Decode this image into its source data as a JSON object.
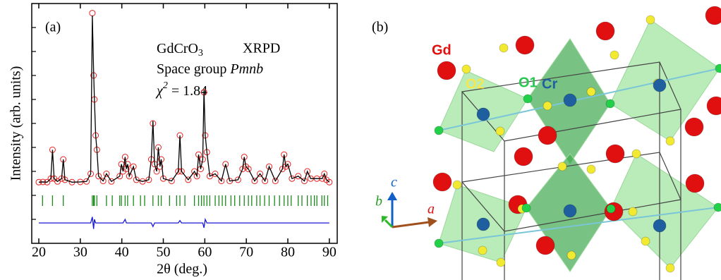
{
  "chart_data": {
    "type": "line",
    "panel_label": "(a)",
    "x_label": "2θ (deg.)",
    "y_label": "Intensity (arb. units)",
    "annotation": {
      "formula": "GdCrO",
      "formula_sub": "3",
      "method": "XRPD",
      "space_group": "Space group ",
      "space_group_symbol": "Pmnb",
      "chi": "χ",
      "chi_sup": "2",
      "chi_value": " = 1.84"
    },
    "xlim": [
      18.3,
      91.9
    ],
    "ylim": [
      0,
      100
    ],
    "xticks": [
      20,
      30,
      40,
      50,
      60,
      70,
      80,
      90
    ],
    "x": [
      20,
      21,
      22,
      22.9,
      23.3,
      23.7,
      24.5,
      25.5,
      25.9,
      26.3,
      28,
      30,
      31.5,
      32.5,
      32.9,
      33.2,
      33.4,
      33.7,
      34.0,
      34.4,
      35.5,
      36.3,
      37.5,
      39.5,
      39.9,
      40.3,
      40.8,
      41.1,
      41.4,
      41.8,
      42.8,
      43.5,
      45,
      46.5,
      47.1,
      47.5,
      47.9,
      48.4,
      48.8,
      49.2,
      49.5,
      50,
      52,
      53.6,
      54.0,
      54.4,
      56,
      57.5,
      58.1,
      58.5,
      59,
      59.5,
      59.8,
      60.1,
      60.5,
      61.2,
      62.5,
      64,
      65.0,
      66,
      68,
      69.1,
      69.5,
      69.9,
      70.5,
      72,
      73.3,
      74.5,
      75.5,
      77,
      78.7,
      79.1,
      79.5,
      80.0,
      81,
      82.5,
      84,
      84.7,
      85.5,
      87.0,
      88.3,
      88.8,
      89.3,
      90
    ],
    "series": [
      {
        "color": "#e8211f",
        "style": "circles",
        "values": [
          25.5,
          25.6,
          25.5,
          27,
          39,
          27,
          25.8,
          27,
          35,
          26.5,
          25.5,
          25.6,
          25.8,
          29,
          96,
          70,
          60,
          45,
          39,
          28,
          26,
          29,
          25.8,
          28,
          33,
          30,
          36,
          31,
          33,
          28,
          32,
          26.5,
          25.8,
          26.5,
          35,
          50,
          33,
          30,
          40,
          32,
          35,
          27,
          26,
          30,
          45,
          30,
          26.5,
          30,
          28,
          37,
          31,
          35,
          63,
          45,
          38,
          28,
          29,
          26,
          33,
          26,
          26.5,
          31,
          36,
          32,
          31,
          26,
          29,
          26,
          32,
          26,
          31,
          37,
          32,
          33,
          27,
          28,
          26,
          30,
          27,
          27,
          27,
          29,
          26.5,
          25.5
        ]
      },
      {
        "color": "#000000",
        "style": "line",
        "values": [
          25.5,
          25.6,
          25.5,
          27,
          39,
          27,
          25.8,
          27,
          35,
          26.5,
          25.5,
          25.6,
          25.8,
          29,
          95,
          72,
          60,
          45,
          39,
          28,
          26,
          29,
          25.8,
          28,
          33,
          30,
          36,
          31,
          33,
          28,
          32,
          26.5,
          25.8,
          26.5,
          35,
          51,
          33,
          30,
          40,
          32,
          35,
          27,
          26,
          30,
          45,
          30,
          26.5,
          30,
          28,
          37,
          31,
          35,
          64,
          45,
          38,
          28,
          29,
          26,
          33,
          26,
          26.5,
          31,
          36,
          32,
          31,
          26,
          29,
          26,
          32,
          26,
          31,
          37,
          32,
          33,
          27,
          28,
          26,
          30,
          27,
          27,
          27,
          29,
          26.5,
          25.5
        ]
      },
      {
        "color": "#1a1ad6",
        "style": "line",
        "values": [
          8.5,
          8.5,
          8.5,
          8.5,
          8.5,
          8.5,
          8.5,
          8.5,
          8.5,
          8.5,
          8.5,
          8.5,
          8.5,
          8.5,
          11,
          6,
          10,
          8.5,
          8.5,
          8.5,
          8.5,
          8.5,
          8.5,
          8.5,
          8.5,
          8.5,
          10,
          8.5,
          8.5,
          8.5,
          8.5,
          8.5,
          8.5,
          8.5,
          8.5,
          7,
          8.5,
          8.5,
          8.5,
          8.5,
          8.5,
          8.5,
          8.5,
          8.5,
          9.5,
          8.5,
          8.5,
          8.5,
          8.5,
          8.5,
          8.5,
          8.5,
          6.5,
          10,
          8.5,
          8.5,
          8.5,
          8.5,
          8.5,
          8.5,
          8.5,
          8.5,
          8.5,
          8.5,
          8.5,
          8.5,
          8.5,
          8.5,
          8.5,
          8.5,
          8.5,
          8.5,
          8.5,
          8.5,
          8.5,
          8.5,
          8.5,
          8.5,
          8.5,
          8.5,
          8.5,
          8.5,
          8.5,
          8.5
        ]
      }
    ],
    "reflections": {
      "color": "#1b8a1b",
      "positions": [
        20.9,
        23.3,
        25.9,
        32.9,
        33.2,
        33.4,
        34.0,
        36.3,
        37.7,
        39.5,
        39.9,
        40.8,
        41.4,
        42.8,
        44.5,
        45.5,
        47.5,
        48.8,
        49.5,
        51.5,
        53.2,
        54.0,
        55.2,
        57.5,
        58.5,
        59.2,
        59.8,
        60.5,
        61.2,
        62.5,
        63.4,
        64.2,
        65.0,
        66.3,
        67.2,
        68.4,
        69.5,
        70.5,
        71.3,
        72.5,
        73.3,
        74.4,
        75.5,
        76.8,
        78.0,
        79.1,
        80.0,
        80.8,
        82.5,
        83.4,
        84.7,
        85.6,
        86.4,
        87.0,
        88.2,
        88.8,
        89.6
      ]
    }
  },
  "structure": {
    "panel_label": "(b)",
    "atoms": [
      "Gd",
      "O2",
      "O1",
      "Cr"
    ],
    "axes": [
      "a",
      "b",
      "c"
    ]
  }
}
